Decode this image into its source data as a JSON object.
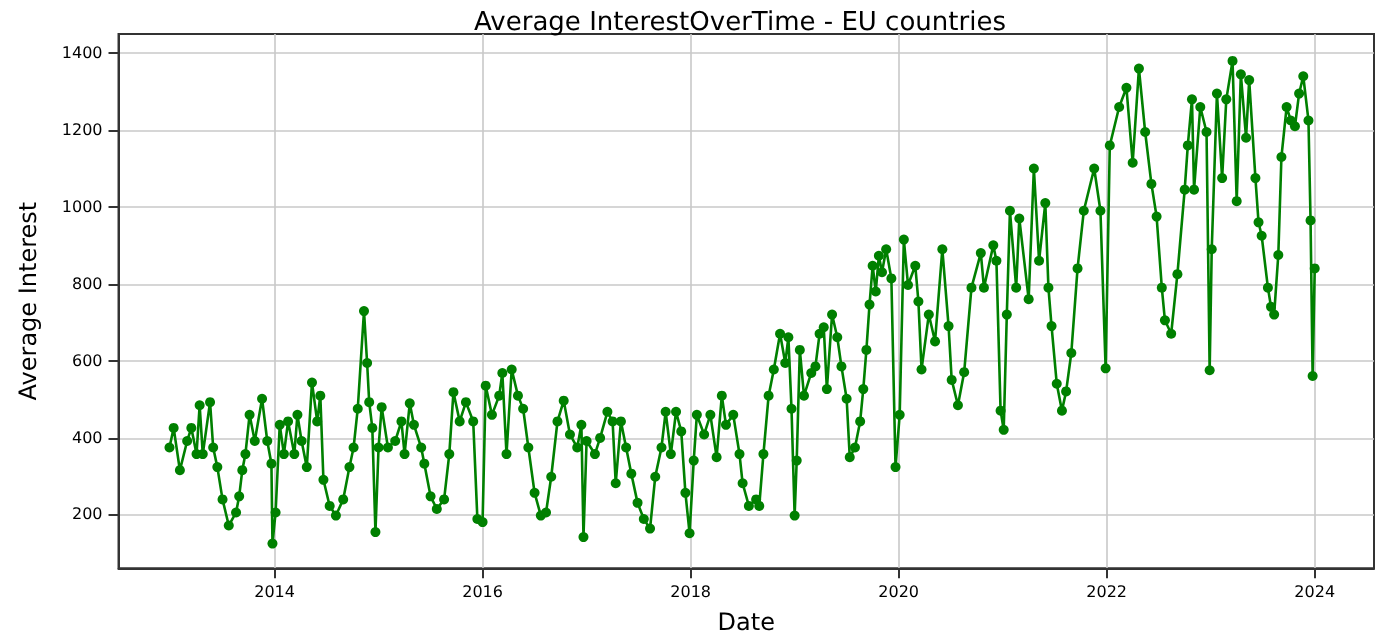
{
  "chart_data": {
    "type": "line",
    "title": "Average InterestOverTime - EU countries",
    "xlabel": "Date",
    "ylabel": "Average Interest",
    "xlim": [
      2012.5,
      2024.57
    ],
    "xticks": [
      2014,
      2016,
      2018,
      2020,
      2022,
      2024
    ],
    "ylim": [
      60,
      1450
    ],
    "yticks": [
      200,
      400,
      600,
      800,
      1000,
      1200,
      1400
    ],
    "grid": true,
    "marker": "circle",
    "line_style": "solid",
    "series": [
      {
        "color": "#008000",
        "x": [
          2012.99,
          2013.03,
          2013.09,
          2013.16,
          2013.2,
          2013.25,
          2013.28,
          2013.31,
          2013.38,
          2013.41,
          2013.45,
          2013.5,
          2013.56,
          2013.63,
          2013.66,
          2013.69,
          2013.72,
          2013.76,
          2013.81,
          2013.88,
          2013.93,
          2013.97,
          2013.98,
          2014.01,
          2014.05,
          2014.09,
          2014.13,
          2014.19,
          2014.22,
          2014.26,
          2014.31,
          2014.36,
          2014.41,
          2014.44,
          2014.47,
          2014.53,
          2014.59,
          2014.66,
          2014.72,
          2014.76,
          2014.8,
          2014.86,
          2014.89,
          2014.91,
          2014.94,
          2014.97,
          2015,
          2015.03,
          2015.09,
          2015.16,
          2015.22,
          2015.25,
          2015.3,
          2015.34,
          2015.41,
          2015.44,
          2015.5,
          2015.56,
          2015.63,
          2015.68,
          2015.72,
          2015.78,
          2015.84,
          2015.91,
          2015.95,
          2016,
          2016.03,
          2016.09,
          2016.16,
          2016.19,
          2016.23,
          2016.28,
          2016.34,
          2016.39,
          2016.44,
          2016.5,
          2016.56,
          2016.61,
          2016.66,
          2016.72,
          2016.78,
          2016.84,
          2016.91,
          2016.95,
          2016.97,
          2017,
          2017.08,
          2017.13,
          2017.2,
          2017.25,
          2017.28,
          2017.33,
          2017.38,
          2017.43,
          2017.49,
          2017.55,
          2017.61,
          2017.66,
          2017.72,
          2017.76,
          2017.81,
          2017.86,
          2017.91,
          2017.95,
          2017.99,
          2018.03,
          2018.06,
          2018.13,
          2018.19,
          2018.25,
          2018.3,
          2018.34,
          2018.41,
          2018.47,
          2018.5,
          2018.56,
          2018.63,
          2018.66,
          2018.7,
          2018.75,
          2018.8,
          2018.86,
          2018.91,
          2018.94,
          2018.97,
          2019,
          2019.02,
          2019.05,
          2019.09,
          2019.16,
          2019.2,
          2019.24,
          2019.28,
          2019.31,
          2019.36,
          2019.41,
          2019.45,
          2019.5,
          2019.53,
          2019.58,
          2019.63,
          2019.66,
          2019.69,
          2019.72,
          2019.75,
          2019.78,
          2019.81,
          2019.84,
          2019.88,
          2019.93,
          2019.97,
          2020.01,
          2020.05,
          2020.09,
          2020.16,
          2020.19,
          2020.22,
          2020.29,
          2020.35,
          2020.42,
          2020.48,
          2020.51,
          2020.57,
          2020.63,
          2020.7,
          2020.79,
          2020.82,
          2020.91,
          2020.94,
          2020.98,
          2021.01,
          2021.04,
          2021.07,
          2021.13,
          2021.16,
          2021.25,
          2021.3,
          2021.35,
          2021.41,
          2021.44,
          2021.47,
          2021.52,
          2021.57,
          2021.61,
          2021.66,
          2021.72,
          2021.78,
          2021.88,
          2021.94,
          2021.99,
          2022.03,
          2022.12,
          2022.19,
          2022.25,
          2022.31,
          2022.37,
          2022.43,
          2022.48,
          2022.53,
          2022.56,
          2022.62,
          2022.68,
          2022.75,
          2022.78,
          2022.82,
          2022.84,
          2022.9,
          2022.96,
          2022.99,
          2023.01,
          2023.06,
          2023.11,
          2023.15,
          2023.21,
          2023.25,
          2023.29,
          2023.34,
          2023.37,
          2023.43,
          2023.46,
          2023.49,
          2023.55,
          2023.58,
          2023.61,
          2023.65,
          2023.68,
          2023.73,
          2023.77,
          2023.81,
          2023.85,
          2023.89,
          2023.94,
          2023.96,
          2023.98,
          2024
        ],
        "values": [
          374,
          425,
          315,
          391,
          425,
          357,
          484,
          357,
          492,
          374,
          323,
          239,
          171,
          205,
          247,
          315,
          357,
          459,
          391,
          501,
          391,
          332,
          124,
          205,
          433,
          357,
          442,
          357,
          459,
          391,
          323,
          543,
          442,
          509,
          290,
          222,
          197,
          239,
          323,
          374,
          475,
          729,
          594,
          492,
          425,
          154,
          374,
          479,
          374,
          391,
          442,
          357,
          489,
          433,
          374,
          332,
          247,
          214,
          239,
          357,
          518,
          442,
          492,
          442,
          188,
          180,
          535,
          459,
          509,
          568,
          357,
          577,
          509,
          475,
          374,
          256,
          197,
          205,
          298,
          442,
          496,
          408,
          374,
          433,
          141,
          391,
          357,
          399,
          467,
          442,
          281,
          442,
          374,
          306,
          230,
          188,
          163,
          298,
          374,
          467,
          357,
          467,
          416,
          256,
          151,
          340,
          459,
          408,
          459,
          349,
          509,
          433,
          459,
          357,
          281,
          222,
          239,
          222,
          357,
          509,
          577,
          670,
          594,
          661,
          475,
          197,
          340,
          628,
          509,
          568,
          585,
          670,
          687,
          526,
          720,
          661,
          585,
          501,
          349,
          374,
          442,
          526,
          628,
          746,
          847,
          780,
          873,
          830,
          890,
          814,
          323,
          459,
          915,
          797,
          847,
          754,
          577,
          720,
          650,
          890,
          690,
          550,
          484,
          570,
          790,
          880,
          790,
          900,
          860,
          470,
          420,
          720,
          990,
          790,
          970,
          760,
          1100,
          860,
          1010,
          790,
          690,
          540,
          470,
          520,
          620,
          840,
          990,
          1100,
          990,
          580,
          1160,
          1260,
          1310,
          1115,
          1360,
          1195,
          1060,
          975,
          790,
          705,
          670,
          825,
          1045,
          1160,
          1280,
          1045,
          1260,
          1195,
          575,
          890,
          1295,
          1075,
          1280,
          1380,
          1015,
          1345,
          1180,
          1330,
          1075,
          960,
          925,
          790,
          740,
          720,
          875,
          1130,
          1260,
          1225,
          1210,
          1295,
          1340,
          1225,
          965,
          560,
          840
        ]
      }
    ]
  }
}
